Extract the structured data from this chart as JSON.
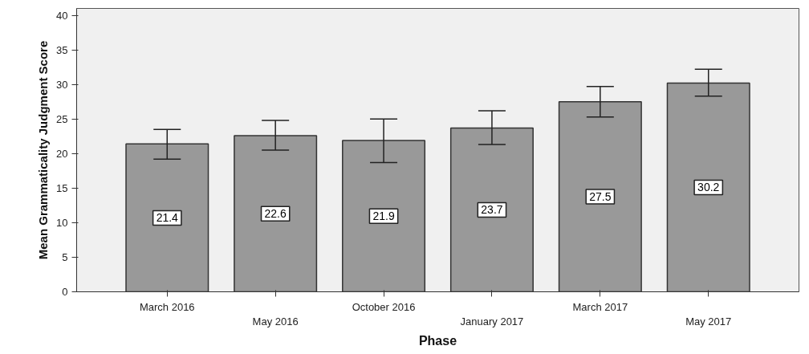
{
  "chart_data": {
    "type": "bar",
    "xlabel": "Phase",
    "ylabel": "Mean Grammaticality Judgment Score",
    "categories": [
      "March 2016",
      "May 2016",
      "October 2016",
      "January 2017",
      "March 2017",
      "May 2017"
    ],
    "values": [
      21.4,
      22.6,
      21.9,
      23.7,
      27.5,
      30.2
    ],
    "errors": [
      [
        19.2,
        23.5
      ],
      [
        20.5,
        24.8
      ],
      [
        18.7,
        25.0
      ],
      [
        21.3,
        26.2
      ],
      [
        25.3,
        29.7
      ],
      [
        28.3,
        32.2
      ]
    ],
    "color": "#999999",
    "ylim": [
      0,
      41
    ],
    "yticks": [
      0,
      5,
      10,
      15,
      20,
      25,
      30,
      35,
      40
    ],
    "data_labels": true,
    "grid": false
  }
}
